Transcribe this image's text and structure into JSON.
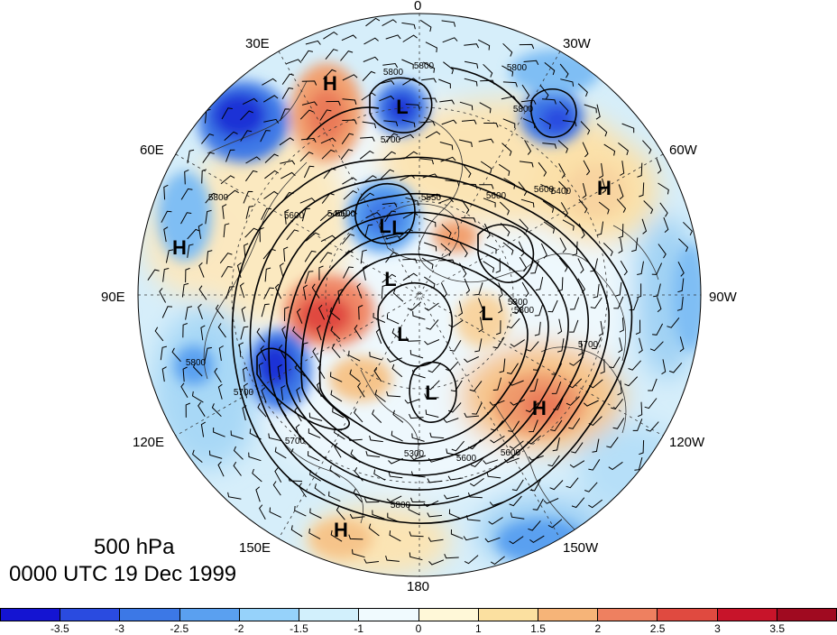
{
  "figure": {
    "level_title": "500 hPa",
    "time_title": "0000 UTC 19 Dec 1999"
  },
  "longitude_labels": [
    {
      "key": "lon_0",
      "text": "0"
    },
    {
      "key": "lon_30w",
      "text": "30W"
    },
    {
      "key": "lon_60w",
      "text": "60W"
    },
    {
      "key": "lon_90w",
      "text": "90W"
    },
    {
      "key": "lon_120w",
      "text": "120W"
    },
    {
      "key": "lon_150w",
      "text": "150W"
    },
    {
      "key": "lon_180",
      "text": "180"
    },
    {
      "key": "lon_150e",
      "text": "150E"
    },
    {
      "key": "lon_120e",
      "text": "120E"
    },
    {
      "key": "lon_90e",
      "text": "90E"
    },
    {
      "key": "lon_60e",
      "text": "60E"
    },
    {
      "key": "lon_30e",
      "text": "30E"
    }
  ],
  "colorbar": {
    "colors": [
      "#1414d2",
      "#2a4be0",
      "#3c78e6",
      "#5aa0f0",
      "#96d2fa",
      "#d2f0fc",
      "#f0fafe",
      "#fff8d8",
      "#fbe0a0",
      "#f6b478",
      "#ee8060",
      "#e04a40",
      "#c8142a",
      "#a00a20"
    ],
    "tick_labels": [
      "-3.5",
      "-3",
      "-2.5",
      "-2",
      "-1.5",
      "-1",
      "0",
      "1",
      "1.5",
      "2",
      "2.5",
      "3",
      "3.5"
    ]
  },
  "contour_labels": [
    "5800",
    "5800",
    "5800",
    "5700",
    "5800",
    "5600",
    "5400",
    "5550",
    "5400",
    "5800",
    "5600",
    "5300",
    "5500",
    "5600",
    "5700",
    "5300",
    "5700",
    "5300",
    "5600",
    "5800",
    "5800",
    "5700",
    "5600"
  ],
  "pressure_systems": [
    "H",
    "L",
    "H",
    "L",
    "L",
    "L",
    "H",
    "L",
    "L",
    "L",
    "H",
    "H"
  ],
  "colors": {
    "contour": "#000000",
    "wind_barb": "#000000",
    "coastline": "#333333",
    "background": "#ffffff"
  }
}
